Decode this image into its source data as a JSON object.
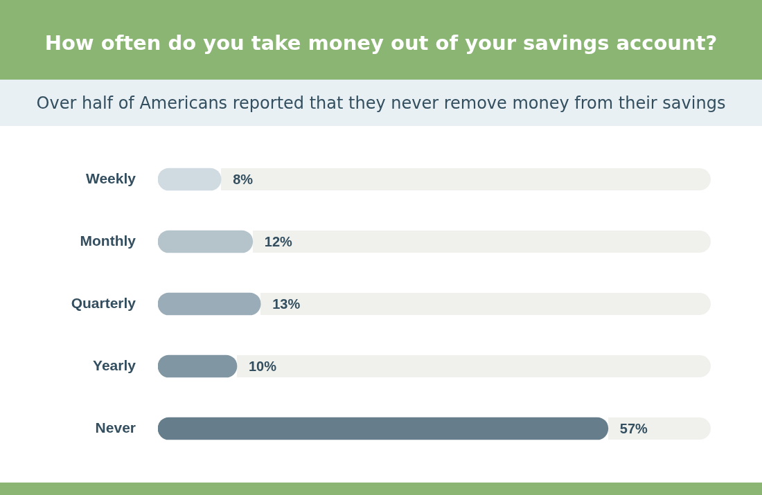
{
  "chart_data": {
    "type": "bar",
    "orientation": "horizontal",
    "title": "How often do you take money out of your savings account?",
    "subtitle": "Over half of Americans reported that they never remove money from their savings",
    "categories": [
      "Weekly",
      "Monthly",
      "Quarterly",
      "Yearly",
      "Never"
    ],
    "values": [
      8,
      12,
      13,
      10,
      57
    ],
    "colors": [
      "#cfdbe1",
      "#b5c4cb",
      "#9aacb7",
      "#8096a2",
      "#667d8b"
    ],
    "value_labels": [
      "8%",
      "12%",
      "13%",
      "10%",
      "57%"
    ],
    "grid": false,
    "tick_labels": "y"
  }
}
